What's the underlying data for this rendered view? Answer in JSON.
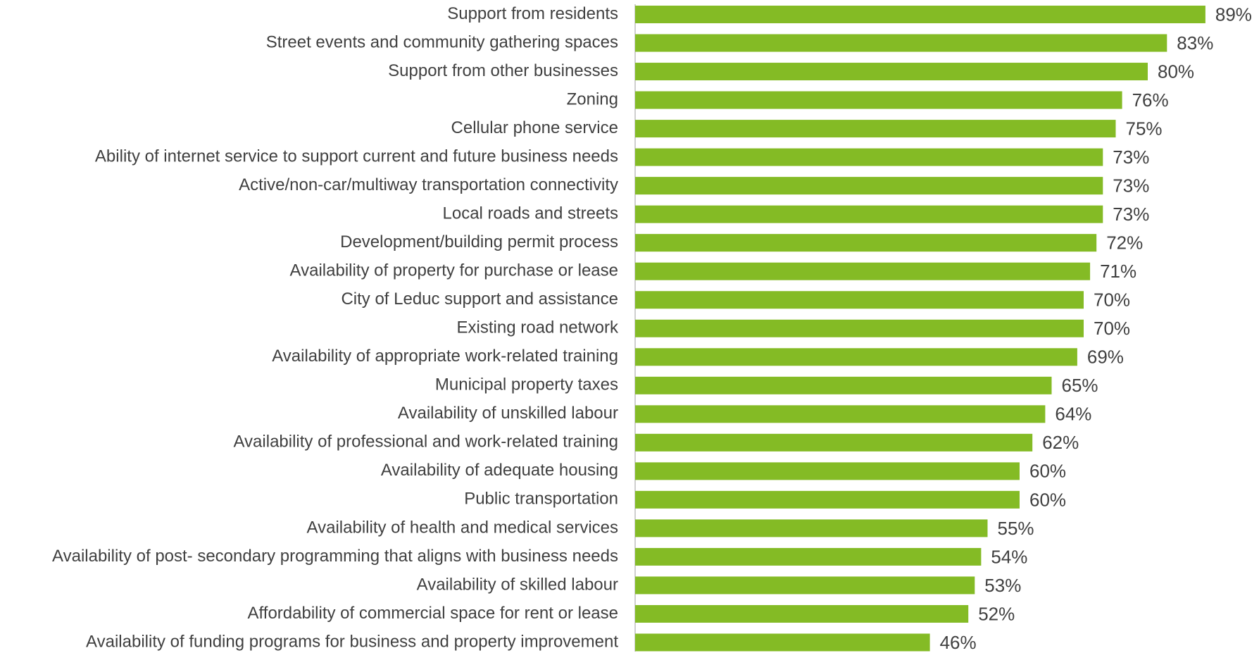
{
  "chart_data": {
    "type": "hbar",
    "categories": [
      "Support from residents",
      "Street events and community gathering spaces",
      "Support from other businesses",
      "Zoning",
      "Cellular phone service",
      "Ability of internet service to support current and future business needs",
      "Active/non-car/multiway transportation connectivity",
      "Local roads and streets",
      "Development/building permit process",
      "Availability of property for purchase or lease",
      "City of Leduc support and assistance",
      "Existing road network",
      "Availability of appropriate work-related training",
      "Municipal property taxes",
      "Availability of unskilled labour",
      "Availability of professional and work-related training",
      "Availability of adequate housing",
      "Public transportation",
      "Availability of health and medical services",
      "Availability of post- secondary programming that aligns with business needs",
      "Availability of skilled labour",
      "Affordability of commercial space for rent or lease",
      "Availability of funding programs for business and property improvement"
    ],
    "values": [
      89,
      83,
      80,
      76,
      75,
      73,
      73,
      73,
      72,
      71,
      70,
      70,
      69,
      65,
      64,
      62,
      60,
      60,
      55,
      54,
      53,
      52,
      46
    ],
    "value_labels": [
      "89%",
      "83%",
      "80%",
      "76%",
      "75%",
      "73%",
      "73%",
      "73%",
      "72%",
      "71%",
      "70%",
      "70%",
      "69%",
      "65%",
      "64%",
      "62%",
      "60%",
      "60%",
      "55%",
      "54%",
      "53%",
      "52%",
      "46%"
    ],
    "color": "#84bb25"
  }
}
